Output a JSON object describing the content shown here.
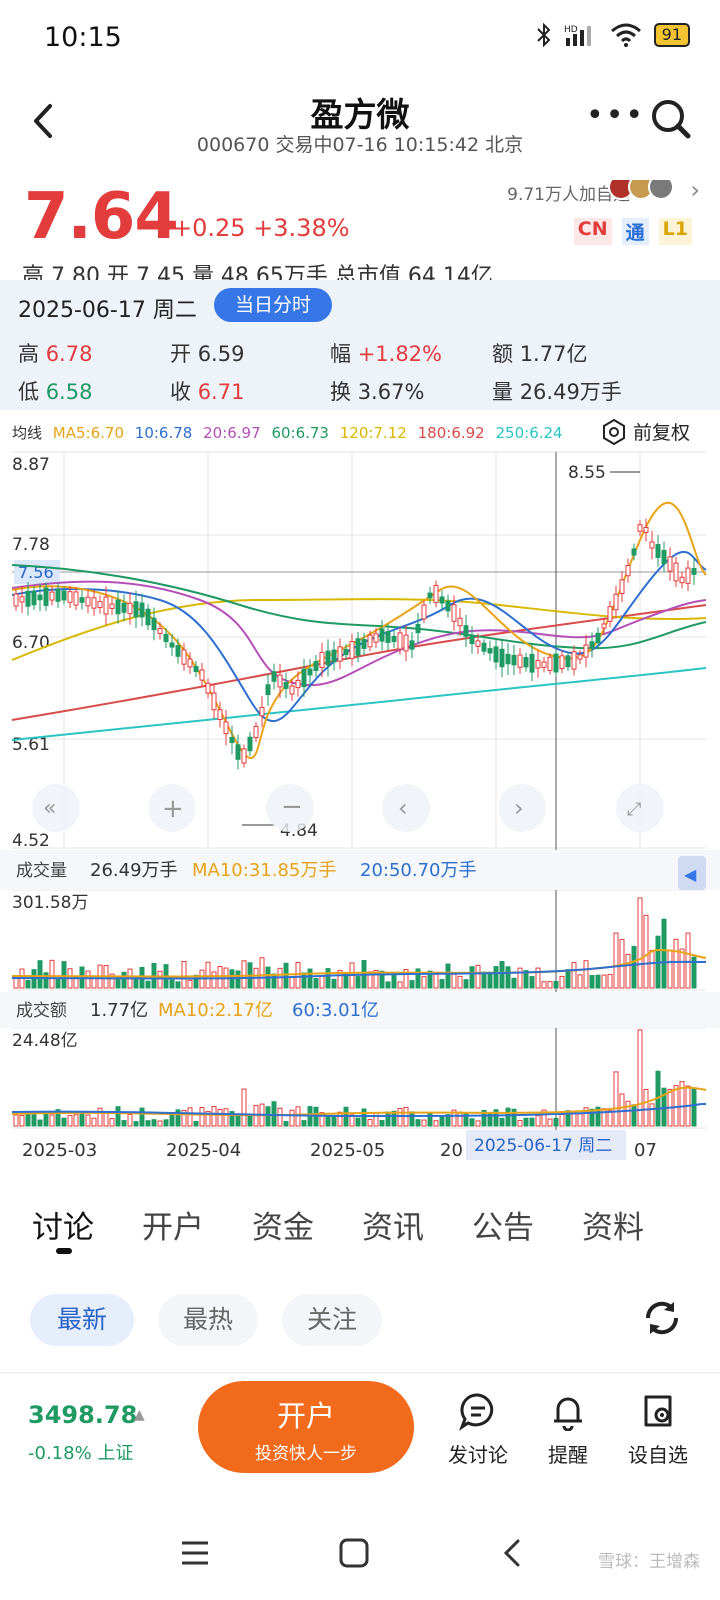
{
  "status": {
    "time": "10:15",
    "battery": "91"
  },
  "header": {
    "title": "盈方微",
    "subtitle": "000670 交易中07-16 10:15:42 北京"
  },
  "quote": {
    "price": "7.64",
    "change": "+0.25 +3.38%",
    "followers": "9.71万人加自选",
    "badges": [
      "CN",
      "通",
      "L1"
    ],
    "clipped_row": "高 7.80    开 7.45    量 48.65万手    总市值 64.14亿"
  },
  "day_detail": {
    "date": "2025-06-17 周二",
    "fenshi_button": "当日分时",
    "high_label": "高",
    "high_value": "6.78",
    "open_label": "开",
    "open_value": "6.59",
    "amp_label": "幅",
    "amp_value": "+1.82%",
    "amount_label": "额",
    "amount_value": "1.77亿",
    "low_label": "低",
    "low_value": "6.58",
    "close_label": "收",
    "close_value": "6.71",
    "turnover_label": "换",
    "turnover_value": "3.67%",
    "volume_label": "量",
    "volume_value": "26.49万手"
  },
  "ma_legend": {
    "title": "均线",
    "items": [
      {
        "text": "MA5:6.70",
        "color": "#e8a317"
      },
      {
        "text": "10:6.78",
        "color": "#2e6fcf"
      },
      {
        "text": "20:6.97",
        "color": "#b54fb8"
      },
      {
        "text": "60:6.73",
        "color": "#1f9a63"
      },
      {
        "text": "120:7.12",
        "color": "#d9b800"
      },
      {
        "text": "180:6.92",
        "color": "#d94a4a"
      },
      {
        "text": "250:6.24",
        "color": "#2bc4c4"
      }
    ],
    "fuquan": "前复权"
  },
  "chart_data": [
    {
      "type": "candlestick",
      "y_ticks": [
        "8.87",
        "7.78",
        "6.70",
        "5.61",
        "4.52"
      ],
      "ylim": [
        4.52,
        8.87
      ],
      "current_price_tag": "7.56",
      "max_marker": "8.55",
      "min_marker": "4.84",
      "x_ticks": [
        "2025-03",
        "2025-04",
        "2025-05",
        "20",
        "07"
      ],
      "crosshair_label": "2025-06-17 周二"
    },
    {
      "type": "bar",
      "title": "成交量",
      "legend": [
        "26.49万手",
        "MA10:31.85万手",
        "20:50.70万手"
      ],
      "legend_colors": [
        "#333333",
        "#e8a317",
        "#2e6fcf"
      ],
      "y_max_label": "301.58万"
    },
    {
      "type": "bar",
      "title": "成交额",
      "legend": [
        "1.77亿",
        "MA10:2.17亿",
        "60:3.01亿"
      ],
      "legend_colors": [
        "#333333",
        "#e8a317",
        "#2e6fcf"
      ],
      "y_max_label": "24.48亿"
    }
  ],
  "tabs": [
    "讨论",
    "开户",
    "资金",
    "资讯",
    "公告",
    "资料"
  ],
  "subtabs": [
    "最新",
    "最热",
    "关注"
  ],
  "bottom": {
    "index_value": "3498.78",
    "index_change": "-0.18% 上证",
    "open_title": "开户",
    "open_sub": "投资快人一步",
    "actions": [
      "发讨论",
      "提醒",
      "设自选"
    ]
  },
  "watermark": "雪球：王增森",
  "colors": {
    "up": "#e23c3c",
    "down": "#1f9a63",
    "accent": "#3676e6",
    "orange": "#f26a1b"
  }
}
